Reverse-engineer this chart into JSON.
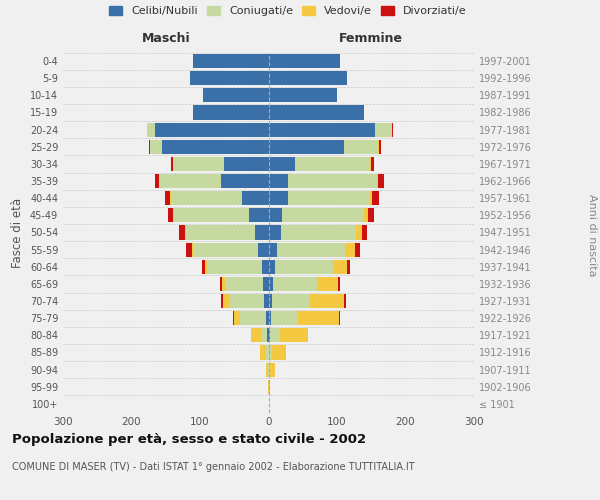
{
  "age_groups": [
    "100+",
    "95-99",
    "90-94",
    "85-89",
    "80-84",
    "75-79",
    "70-74",
    "65-69",
    "60-64",
    "55-59",
    "50-54",
    "45-49",
    "40-44",
    "35-39",
    "30-34",
    "25-29",
    "20-24",
    "15-19",
    "10-14",
    "5-9",
    "0-4"
  ],
  "birth_years": [
    "≤ 1901",
    "1902-1906",
    "1907-1911",
    "1912-1916",
    "1917-1921",
    "1922-1926",
    "1927-1931",
    "1932-1936",
    "1937-1941",
    "1942-1946",
    "1947-1951",
    "1952-1956",
    "1957-1961",
    "1962-1966",
    "1967-1971",
    "1972-1976",
    "1977-1981",
    "1982-1986",
    "1987-1991",
    "1992-1996",
    "1997-2001"
  ],
  "maschi": {
    "celibi": [
      0,
      0,
      0,
      0,
      2,
      4,
      6,
      8,
      10,
      15,
      20,
      28,
      38,
      70,
      65,
      155,
      165,
      110,
      95,
      115,
      110
    ],
    "coniugati": [
      0,
      0,
      1,
      4,
      8,
      38,
      50,
      55,
      80,
      95,
      100,
      110,
      105,
      90,
      75,
      18,
      12,
      0,
      0,
      0,
      0
    ],
    "vedovi": [
      0,
      1,
      3,
      8,
      15,
      8,
      10,
      5,
      3,
      2,
      2,
      1,
      1,
      0,
      0,
      0,
      0,
      0,
      0,
      0,
      0
    ],
    "divorziati": [
      0,
      0,
      0,
      0,
      0,
      2,
      3,
      3,
      4,
      8,
      8,
      8,
      7,
      5,
      3,
      2,
      1,
      0,
      0,
      0,
      0
    ]
  },
  "femmine": {
    "nubili": [
      0,
      0,
      0,
      0,
      2,
      3,
      5,
      6,
      9,
      12,
      18,
      20,
      28,
      28,
      38,
      110,
      155,
      140,
      100,
      115,
      105
    ],
    "coniugate": [
      0,
      0,
      2,
      5,
      15,
      40,
      55,
      65,
      85,
      100,
      110,
      120,
      120,
      130,
      110,
      50,
      25,
      0,
      0,
      0,
      0
    ],
    "vedove": [
      0,
      2,
      8,
      20,
      40,
      60,
      50,
      30,
      20,
      15,
      8,
      5,
      3,
      2,
      1,
      1,
      0,
      0,
      0,
      0,
      0
    ],
    "divorziate": [
      0,
      0,
      0,
      0,
      0,
      2,
      3,
      3,
      5,
      6,
      8,
      9,
      10,
      8,
      5,
      3,
      2,
      0,
      0,
      0,
      0
    ]
  },
  "colors": {
    "celibi_nubili": "#3a6fa8",
    "coniugati": "#c5d9a0",
    "vedovi": "#f5c842",
    "divorziati": "#cc1111"
  },
  "xlim": 300,
  "title": "Popolazione per età, sesso e stato civile - 2002",
  "subtitle": "COMUNE DI MASER (TV) - Dati ISTAT 1° gennaio 2002 - Elaborazione TUTTITALIA.IT",
  "ylabel": "Fasce di età",
  "ylabel_right": "Anni di nascita",
  "bg_color": "#f0f0f0",
  "grid_color": "#cccccc",
  "legend_labels": [
    "Celibi/Nubili",
    "Coniugati/e",
    "Vedovi/e",
    "Divorziati/e"
  ],
  "maschi_label": "Maschi",
  "femmine_label": "Femmine"
}
